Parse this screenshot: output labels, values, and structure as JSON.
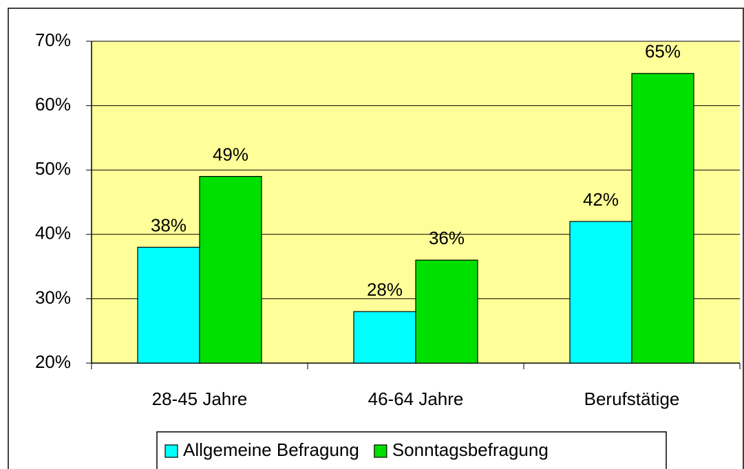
{
  "chart_data": {
    "type": "bar",
    "categories": [
      "28-45 Jahre",
      "46-64 Jahre",
      "Berufstätige"
    ],
    "series": [
      {
        "name": "Allgemeine Befragung",
        "color": "#00FFFF",
        "values": [
          38,
          28,
          42
        ],
        "value_labels": [
          "38%",
          "28%",
          "42%"
        ]
      },
      {
        "name": "Sonntagsbefragung",
        "color": "#00E000",
        "values": [
          49,
          36,
          65
        ],
        "value_labels": [
          "49%",
          "36%",
          "65%"
        ]
      }
    ],
    "ylim": [
      20,
      70
    ],
    "yticks": [
      {
        "value": 20,
        "label": "20%"
      },
      {
        "value": 30,
        "label": "30%"
      },
      {
        "value": 40,
        "label": "40%"
      },
      {
        "value": 50,
        "label": "50%"
      },
      {
        "value": 60,
        "label": "60%"
      },
      {
        "value": 70,
        "label": "70%"
      }
    ],
    "grid": true,
    "plot_background": "#FFFF99",
    "legend": "bottom"
  }
}
